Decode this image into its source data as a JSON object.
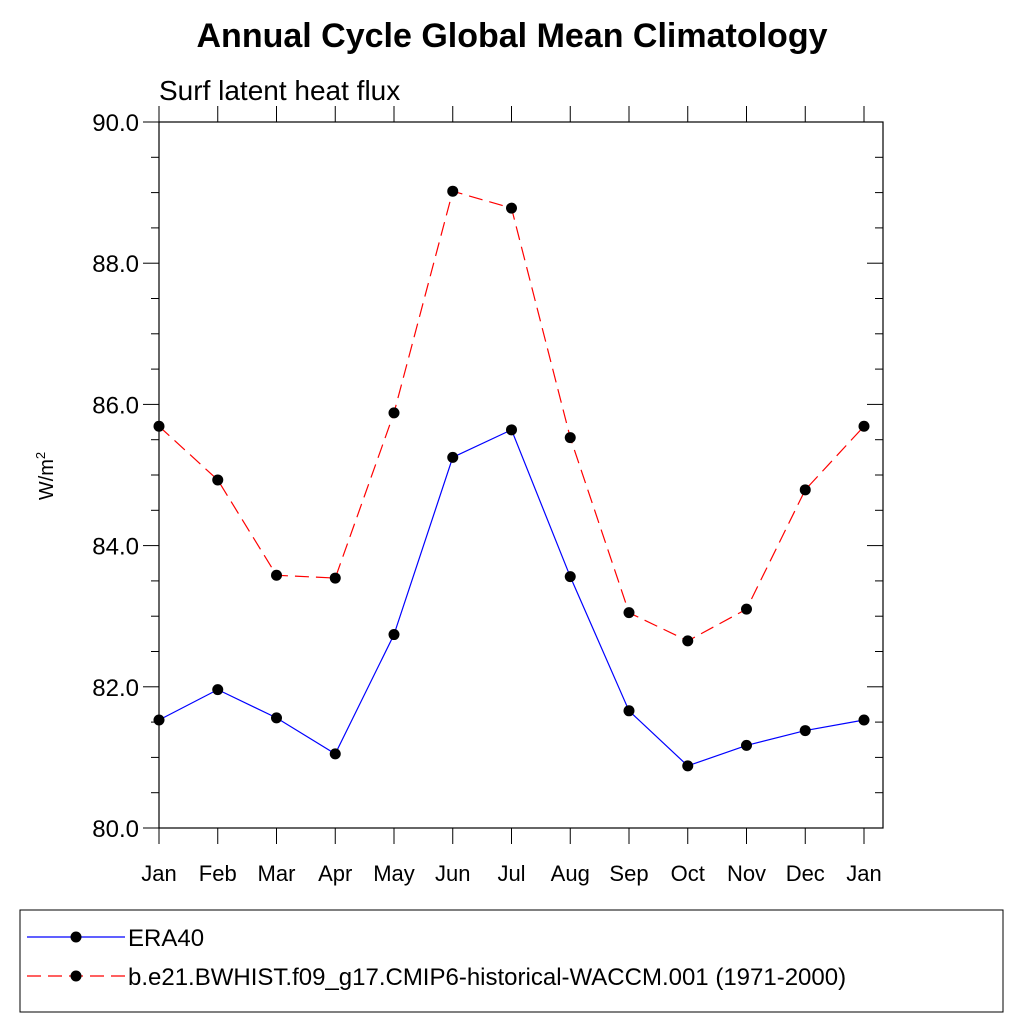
{
  "chart_data": {
    "type": "line",
    "title": "Annual Cycle Global Mean Climatology",
    "subtitle": "Surf latent heat flux",
    "ylabel_base": "W/m",
    "ylabel_sup": "2",
    "xlabel": "",
    "categories": [
      "Jan",
      "Feb",
      "Mar",
      "Apr",
      "May",
      "Jun",
      "Jul",
      "Aug",
      "Sep",
      "Oct",
      "Nov",
      "Dec",
      "Jan"
    ],
    "ylim": [
      80.0,
      90.0
    ],
    "yticks": [
      "80.0",
      "82.0",
      "84.0",
      "86.0",
      "88.0",
      "90.0"
    ],
    "ytick_values": [
      80,
      82,
      84,
      86,
      88,
      90
    ],
    "series": [
      {
        "name": "ERA40",
        "values": [
          81.53,
          81.96,
          81.56,
          81.05,
          82.74,
          85.25,
          85.64,
          83.56,
          81.66,
          80.88,
          81.17,
          81.38,
          81.53
        ],
        "color": "#0000ff",
        "dash": "solid",
        "marker": "filled-circle"
      },
      {
        "name": "b.e21.BWHIST.f09_g17.CMIP6-historical-WACCM.001 (1971-2000)",
        "values": [
          85.69,
          84.93,
          83.58,
          83.54,
          85.88,
          89.02,
          88.78,
          85.53,
          83.05,
          82.65,
          83.1,
          84.79,
          85.69
        ],
        "color": "#ff0000",
        "dash": "dashed",
        "marker": "filled-circle"
      }
    ],
    "grid": false,
    "legend_position": "bottom"
  }
}
